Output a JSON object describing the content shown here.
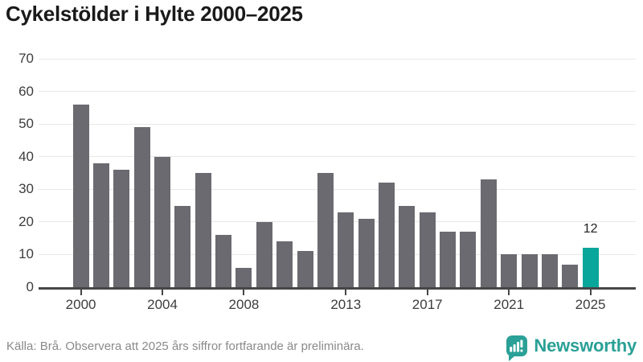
{
  "title": "Cykelstölder i Hylte 2000–2025",
  "footer": {
    "source_note": "Källa: Brå. Observera att 2025 års siffror fortfarande är preliminära."
  },
  "branding": {
    "logo_text": "Newsworthy",
    "logo_icon": "bar-chart-speech-bubble-icon"
  },
  "colors": {
    "bar": "#6a6a70",
    "highlight": "#09a69b",
    "brand": "#2aa096",
    "gridline": "#e8e8e8",
    "axis": "#474747",
    "tick_text": "#3d3d3d",
    "footer_text": "#8a8a8a",
    "title_text": "#1a1a1a",
    "value_label_text": "#1f1f1f"
  },
  "chart_data": {
    "type": "bar",
    "title": "Cykelstölder i Hylte 2000–2025",
    "xlabel": "",
    "ylabel": "",
    "categories": [
      2000,
      2001,
      2002,
      2003,
      2004,
      2005,
      2006,
      2007,
      2008,
      2009,
      2010,
      2011,
      2012,
      2013,
      2014,
      2015,
      2016,
      2017,
      2018,
      2019,
      2020,
      2021,
      2022,
      2023,
      2024,
      2025
    ],
    "values": [
      56,
      38,
      36,
      49,
      40,
      25,
      35,
      16,
      6,
      20,
      14,
      11,
      35,
      23,
      21,
      32,
      25,
      23,
      17,
      17,
      33,
      10,
      10,
      10,
      7,
      12
    ],
    "ylim": [
      0,
      70
    ],
    "yticks": [
      0,
      10,
      20,
      30,
      40,
      50,
      60,
      70
    ],
    "xticks": [
      2000,
      2004,
      2008,
      2013,
      2017,
      2021,
      2025
    ],
    "grid": true,
    "legend": "none",
    "highlight_index": 25,
    "highlight_label": "12"
  }
}
